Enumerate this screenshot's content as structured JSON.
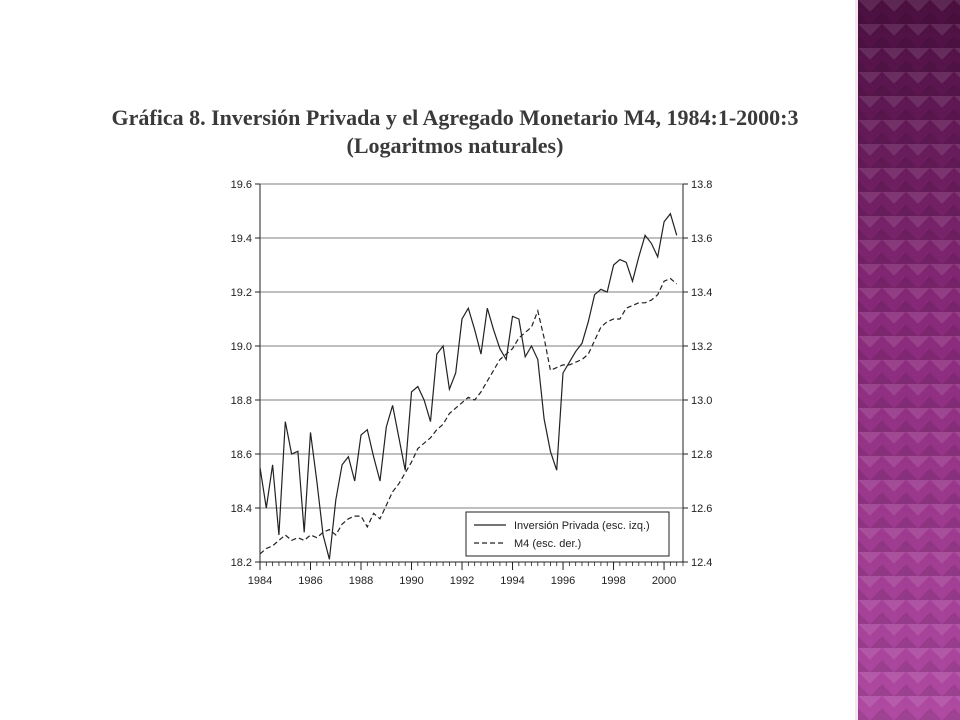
{
  "colors": {
    "deco_dark": "#4a0f3f",
    "deco_light": "#b04aa3",
    "line": "#222222",
    "grid": "#555555"
  },
  "chart_data": {
    "type": "line",
    "title": "Gráfica 8. Inversión Privada y el Agregado Monetario M4, 1984:1-2000:3",
    "subtitle": "(Logaritmos naturales)",
    "x_tick_labels": [
      "1984",
      "1986",
      "1988",
      "1990",
      "1992",
      "1994",
      "1996",
      "1998",
      "2000"
    ],
    "xlim": [
      1984.0,
      2000.75
    ],
    "y_left_ticks": [
      "18.2",
      "18.4",
      "18.6",
      "18.8",
      "19.0",
      "19.2",
      "19.4",
      "19.6"
    ],
    "y_right_ticks": [
      "12.4",
      "12.6",
      "12.8",
      "13.0",
      "13.2",
      "13.4",
      "13.6",
      "13.8"
    ],
    "ylim_left": [
      18.2,
      19.6
    ],
    "ylim_right": [
      12.4,
      13.8
    ],
    "grid": "horizontal",
    "legend_position": "bottom-right",
    "series": [
      {
        "name": "Inversión Privada (esc. izq.)",
        "axis": "left",
        "style": "solid",
        "start": 1984.0,
        "step": 0.25,
        "values": [
          18.55,
          18.4,
          18.56,
          18.3,
          18.72,
          18.6,
          18.61,
          18.31,
          18.68,
          18.5,
          18.3,
          18.21,
          18.43,
          18.56,
          18.59,
          18.5,
          18.67,
          18.69,
          18.59,
          18.5,
          18.7,
          18.78,
          18.66,
          18.54,
          18.83,
          18.85,
          18.8,
          18.72,
          18.97,
          19.0,
          18.84,
          18.9,
          19.1,
          19.14,
          19.06,
          18.97,
          19.14,
          19.06,
          18.99,
          18.95,
          19.11,
          19.1,
          18.96,
          19.0,
          18.95,
          18.73,
          18.61,
          18.54,
          18.9,
          18.94,
          18.98,
          19.01,
          19.09,
          19.19,
          19.21,
          19.2,
          19.3,
          19.32,
          19.31,
          19.24,
          19.33,
          19.41,
          19.38,
          19.33,
          19.46,
          19.49,
          19.41
        ]
      },
      {
        "name": "M4 (esc. der.)",
        "axis": "right",
        "style": "dashed",
        "start": 1984.0,
        "step": 0.25,
        "values": [
          12.43,
          12.45,
          12.46,
          12.48,
          12.5,
          12.48,
          12.49,
          12.48,
          12.5,
          12.49,
          12.51,
          12.52,
          12.5,
          12.54,
          12.56,
          12.57,
          12.57,
          12.53,
          12.58,
          12.56,
          12.61,
          12.66,
          12.69,
          12.73,
          12.77,
          12.82,
          12.84,
          12.86,
          12.89,
          12.91,
          12.95,
          12.97,
          12.99,
          13.01,
          13.0,
          13.03,
          13.07,
          13.11,
          13.15,
          13.17,
          13.19,
          13.23,
          13.25,
          13.27,
          13.33,
          13.23,
          13.11,
          13.12,
          13.13,
          13.13,
          13.14,
          13.15,
          13.17,
          13.22,
          13.27,
          13.29,
          13.3,
          13.3,
          13.34,
          13.35,
          13.36,
          13.36,
          13.37,
          13.39,
          13.44,
          13.45,
          13.43
        ]
      }
    ]
  }
}
